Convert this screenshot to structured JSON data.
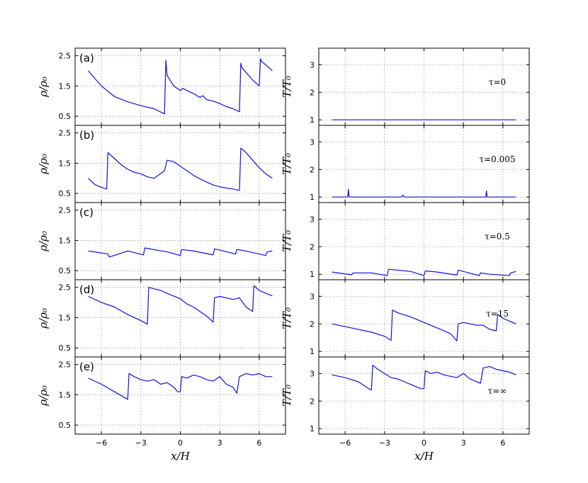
{
  "chart_data": {
    "type": "line",
    "xlabel": "x/H",
    "x_ticks": [
      -6,
      -3,
      0,
      3,
      6
    ],
    "x_tick_labels": [
      "−6",
      "−3",
      "0",
      "3",
      "6"
    ],
    "xlim": [
      -8,
      8
    ],
    "left_column": {
      "ylabel": "ρ/ρ₀",
      "ylim": [
        0.2,
        2.75
      ],
      "y_ticks": [
        0.5,
        1.5,
        2.5
      ],
      "y_tick_labels": [
        "0.5",
        "1.5",
        "2.5"
      ],
      "panels": [
        {
          "tag": "(a)",
          "x": [
            -7,
            -6,
            -5,
            -4,
            -3,
            -2,
            -1.2,
            -1.1,
            -1,
            -0.5,
            0,
            0.2,
            0.5,
            1,
            1.5,
            1.7,
            2,
            2.5,
            3,
            3.5,
            4,
            4.5,
            4.6,
            4.7,
            5.5,
            6,
            6.1,
            6.2,
            6.5,
            7
          ],
          "y": [
            2.0,
            1.5,
            1.15,
            0.98,
            0.85,
            0.75,
            0.58,
            2.35,
            1.85,
            1.5,
            1.35,
            1.42,
            1.35,
            1.25,
            1.12,
            1.18,
            1.05,
            1.0,
            0.92,
            0.82,
            0.75,
            0.65,
            2.25,
            2.1,
            1.7,
            1.5,
            2.4,
            2.3,
            2.2,
            2.0
          ]
        },
        {
          "tag": "(b)",
          "x": [
            -7,
            -6.5,
            -6,
            -5.6,
            -5.5,
            -5,
            -4.5,
            -4,
            -3.5,
            -3,
            -2.5,
            -2,
            -1.2,
            -1,
            -0.5,
            0,
            0.5,
            1,
            1.5,
            2,
            2.5,
            3,
            3.5,
            4,
            4.5,
            4.6,
            5,
            5.5,
            6,
            6.5,
            7
          ],
          "y": [
            1.0,
            0.8,
            0.7,
            0.65,
            1.85,
            1.65,
            1.45,
            1.3,
            1.2,
            1.15,
            1.05,
            1.0,
            1.25,
            1.6,
            1.55,
            1.4,
            1.25,
            1.1,
            0.98,
            0.88,
            0.78,
            0.72,
            0.68,
            0.65,
            0.6,
            2.0,
            1.85,
            1.6,
            1.35,
            1.15,
            1.0
          ]
        },
        {
          "tag": "(c)",
          "x": [
            -7,
            -5.5,
            -5.4,
            -4,
            -2.8,
            -2.7,
            -1,
            0,
            0.1,
            1,
            2.5,
            2.6,
            3,
            4.2,
            4.3,
            5,
            6.5,
            6.6,
            7
          ],
          "y": [
            1.15,
            1.05,
            0.95,
            1.15,
            1.02,
            1.25,
            1.12,
            1.0,
            1.2,
            1.15,
            1.02,
            1.22,
            1.18,
            1.05,
            1.2,
            1.15,
            1.0,
            1.12,
            1.15
          ]
        },
        {
          "tag": "(d)",
          "x": [
            -7,
            -6,
            -5,
            -4,
            -3.5,
            -3,
            -2.5,
            -2.4,
            -2,
            -1.5,
            -1,
            0,
            0.5,
            1,
            1.5,
            2,
            2.5,
            2.6,
            3,
            4,
            4.5,
            5,
            5.5,
            5.6,
            6,
            6.5,
            7
          ],
          "y": [
            2.2,
            2.0,
            1.85,
            1.6,
            1.5,
            1.4,
            1.28,
            2.5,
            2.45,
            2.4,
            2.3,
            2.12,
            1.95,
            1.85,
            1.7,
            1.55,
            1.35,
            2.15,
            2.2,
            2.1,
            2.15,
            1.85,
            1.7,
            2.55,
            2.4,
            2.3,
            2.22
          ]
        },
        {
          "tag": "(e)",
          "x": [
            -7,
            -6,
            -5,
            -4.2,
            -4,
            -3.9,
            -3.5,
            -3,
            -2.5,
            -2,
            -1.5,
            -1,
            -0.5,
            -0.2,
            0,
            0.1,
            0.5,
            1,
            1.5,
            2,
            2.5,
            3,
            3.5,
            4,
            4.3,
            4.5,
            5,
            5.5,
            6,
            6.5,
            7
          ],
          "y": [
            2.05,
            1.85,
            1.6,
            1.4,
            1.35,
            2.2,
            2.1,
            2.0,
            1.95,
            2.0,
            1.85,
            1.9,
            1.75,
            1.6,
            1.6,
            2.1,
            2.05,
            2.15,
            2.1,
            2.0,
            1.95,
            2.1,
            1.85,
            1.75,
            1.55,
            2.1,
            2.2,
            2.15,
            2.2,
            2.1,
            2.1
          ]
        }
      ]
    },
    "right_column": {
      "ylabel": "T/T₀",
      "ylim": [
        0.8,
        3.6
      ],
      "y_ticks": [
        1,
        2,
        3
      ],
      "y_tick_labels": [
        "1",
        "2",
        "3"
      ],
      "panels": [
        {
          "tau": "τ=0",
          "x": [
            -7,
            7
          ],
          "y": [
            1,
            1
          ]
        },
        {
          "tau": "τ=0.005",
          "x": [
            -7,
            -5.8,
            -5.75,
            -5.7,
            -5.6,
            -1.7,
            -1.6,
            -1.5,
            4.6,
            4.7,
            4.75,
            4.8,
            7
          ],
          "y": [
            1,
            1,
            1.28,
            1.02,
            1,
            1,
            1.07,
            1,
            1,
            1,
            1.22,
            1,
            1
          ]
        },
        {
          "tau": "τ=0.5",
          "x": [
            -7,
            -5.5,
            -5.4,
            -4,
            -2.8,
            -2.7,
            -1,
            0,
            0.1,
            1,
            2.5,
            2.6,
            3,
            4.2,
            4.3,
            5,
            6.5,
            6.6,
            7
          ],
          "y": [
            1.08,
            0.98,
            1.05,
            1.05,
            0.95,
            1.18,
            1.1,
            0.95,
            1.12,
            1.08,
            0.97,
            1.15,
            1.1,
            0.95,
            1.05,
            1.0,
            0.95,
            1.05,
            1.1
          ]
        },
        {
          "tau": "τ=15",
          "x": [
            -7,
            -6,
            -5,
            -4,
            -3,
            -2.5,
            -2.4,
            -2,
            -1,
            0,
            1,
            2,
            2.5,
            2.6,
            3,
            4,
            4.5,
            5,
            5.5,
            5.6,
            6,
            6.5,
            7
          ],
          "y": [
            2.0,
            1.9,
            1.8,
            1.7,
            1.55,
            1.4,
            2.5,
            2.4,
            2.25,
            2.05,
            1.85,
            1.65,
            1.38,
            2.0,
            2.05,
            1.95,
            1.95,
            1.8,
            1.75,
            2.35,
            2.2,
            2.1,
            2.0
          ]
        },
        {
          "tau": "τ=∞",
          "x": [
            -7,
            -6,
            -5,
            -4.2,
            -4,
            -3.9,
            -3.5,
            -3,
            -2.5,
            -2,
            -1.5,
            -1,
            -0.5,
            -0.2,
            0,
            0.1,
            0.5,
            1,
            1.5,
            2,
            2.5,
            3,
            3.5,
            4,
            4.3,
            4.5,
            5,
            5.5,
            6,
            6.5,
            7
          ],
          "y": [
            2.95,
            2.85,
            2.7,
            2.45,
            2.4,
            3.3,
            3.15,
            3.0,
            2.85,
            2.8,
            2.7,
            2.6,
            2.5,
            2.45,
            2.45,
            3.1,
            3.0,
            3.05,
            2.95,
            2.9,
            2.85,
            3.0,
            2.8,
            2.7,
            2.65,
            3.2,
            3.25,
            3.15,
            3.1,
            3.05,
            2.95
          ]
        }
      ]
    }
  }
}
